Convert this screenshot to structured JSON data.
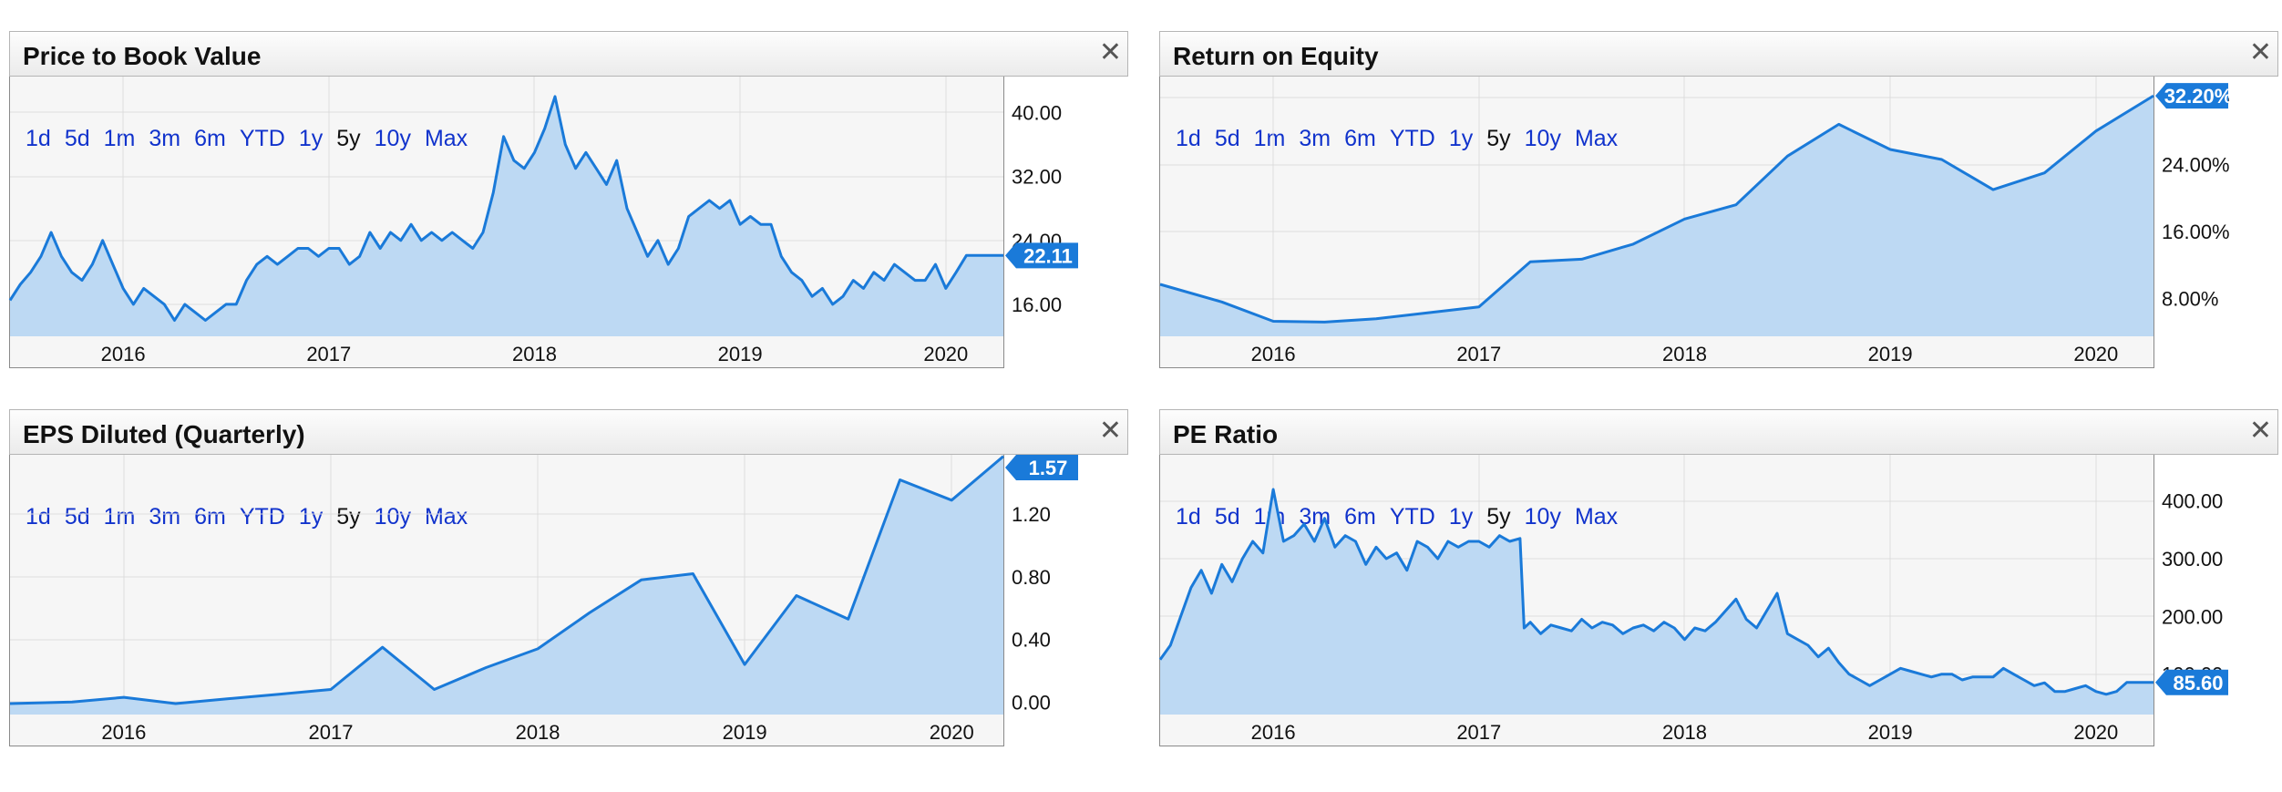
{
  "time_range_buttons": [
    "1d",
    "5d",
    "1m",
    "3m",
    "6m",
    "YTD",
    "1y",
    "5y",
    "10y",
    "Max"
  ],
  "active_range": "5y",
  "accent_color": "#1a7ad9",
  "fill_color": "#bdd9f3",
  "chart_data": [
    {
      "type": "area",
      "title": "Price to Book Value",
      "x_tick_labels": [
        "2016",
        "2017",
        "2018",
        "2019",
        "2020"
      ],
      "y_tick_labels": [
        "40.00",
        "32.00",
        "24.00",
        "16.00"
      ],
      "y_ticks": [
        40,
        32,
        24,
        16
      ],
      "xlim": [
        2015.45,
        2020.28
      ],
      "ylim": [
        12.0,
        44.5
      ],
      "current_value": 22.11,
      "current_value_label": "22.11",
      "x": [
        2015.45,
        2015.5,
        2015.55,
        2015.6,
        2015.65,
        2015.7,
        2015.75,
        2015.8,
        2015.85,
        2015.9,
        2015.95,
        2016.0,
        2016.05,
        2016.1,
        2016.15,
        2016.2,
        2016.25,
        2016.3,
        2016.35,
        2016.4,
        2016.45,
        2016.5,
        2016.55,
        2016.6,
        2016.65,
        2016.7,
        2016.75,
        2016.8,
        2016.85,
        2016.9,
        2016.95,
        2017.0,
        2017.05,
        2017.1,
        2017.15,
        2017.2,
        2017.25,
        2017.3,
        2017.35,
        2017.4,
        2017.45,
        2017.5,
        2017.55,
        2017.6,
        2017.65,
        2017.7,
        2017.75,
        2017.8,
        2017.85,
        2017.9,
        2017.95,
        2018.0,
        2018.05,
        2018.1,
        2018.15,
        2018.2,
        2018.25,
        2018.3,
        2018.35,
        2018.4,
        2018.45,
        2018.5,
        2018.55,
        2018.6,
        2018.65,
        2018.7,
        2018.75,
        2018.8,
        2018.85,
        2018.9,
        2018.95,
        2019.0,
        2019.05,
        2019.1,
        2019.15,
        2019.2,
        2019.25,
        2019.3,
        2019.35,
        2019.4,
        2019.45,
        2019.5,
        2019.55,
        2019.6,
        2019.65,
        2019.7,
        2019.75,
        2019.8,
        2019.85,
        2019.9,
        2019.95,
        2020.0,
        2020.05,
        2020.1,
        2020.15,
        2020.2,
        2020.25,
        2020.28
      ],
      "values": [
        16.5,
        18.5,
        20,
        22,
        25,
        22,
        20,
        19,
        21,
        24,
        21,
        18,
        16,
        18,
        17,
        16,
        14,
        16,
        15,
        14,
        15,
        16,
        16,
        19,
        21,
        22,
        21,
        22,
        23,
        23,
        22,
        23,
        23,
        21,
        22,
        25,
        23,
        25,
        24,
        26,
        24,
        25,
        24,
        25,
        24,
        23,
        25,
        30,
        37,
        34,
        33,
        35,
        38,
        42,
        36,
        33,
        35,
        33,
        31,
        34,
        28,
        25,
        22,
        24,
        21,
        23,
        27,
        28,
        29,
        28,
        29,
        26,
        27,
        26,
        26,
        22,
        20,
        19,
        17,
        18,
        16,
        17,
        19,
        18,
        20,
        19,
        21,
        20,
        19,
        19,
        21,
        18,
        20,
        22.11,
        22.11,
        22.11,
        22.11,
        22.11
      ]
    },
    {
      "type": "area",
      "title": "Return on Equity",
      "x_tick_labels": [
        "2016",
        "2017",
        "2018",
        "2019",
        "2020"
      ],
      "y_tick_labels": [
        "32.00%",
        "24.00%",
        "16.00%",
        "8.00%"
      ],
      "y_ticks": [
        32,
        24,
        16,
        8
      ],
      "xlim": [
        2015.45,
        2020.28
      ],
      "ylim": [
        3.5,
        34.5
      ],
      "current_value": 32.2,
      "current_value_label": "32.20%",
      "x": [
        2015.45,
        2015.75,
        2016.0,
        2016.25,
        2016.5,
        2016.75,
        2017.0,
        2017.25,
        2017.5,
        2017.75,
        2018.0,
        2018.25,
        2018.5,
        2018.75,
        2019.0,
        2019.25,
        2019.5,
        2019.75,
        2020.0,
        2020.28
      ],
      "values": [
        9.7,
        7.6,
        5.3,
        5.2,
        5.6,
        6.3,
        7.0,
        12.4,
        12.7,
        14.5,
        17.5,
        19.2,
        25.0,
        28.8,
        25.8,
        24.6,
        21.0,
        23.0,
        28.0,
        32.2
      ]
    },
    {
      "type": "area",
      "title": "EPS Diluted (Quarterly)",
      "x_tick_labels": [
        "2016",
        "2017",
        "2018",
        "2019",
        "2020"
      ],
      "y_tick_labels": [
        "1.20",
        "0.80",
        "0.40",
        "0.00"
      ],
      "y_ticks": [
        1.2,
        0.8,
        0.4,
        0.0
      ],
      "xlim": [
        2015.45,
        2020.25
      ],
      "ylim": [
        -0.08,
        1.58
      ],
      "current_value": 1.57,
      "current_value_label": "1.57",
      "x": [
        2015.45,
        2015.75,
        2016.0,
        2016.25,
        2016.5,
        2016.75,
        2017.0,
        2017.25,
        2017.5,
        2017.75,
        2018.0,
        2018.25,
        2018.5,
        2018.75,
        2019.0,
        2019.25,
        2019.5,
        2019.75,
        2020.0,
        2020.25
      ],
      "values": [
        -0.01,
        0.0,
        0.03,
        -0.01,
        0.02,
        0.05,
        0.08,
        0.35,
        0.08,
        0.22,
        0.34,
        0.57,
        0.78,
        0.82,
        0.24,
        0.68,
        0.53,
        1.42,
        1.29,
        1.57
      ]
    },
    {
      "type": "area",
      "title": "PE Ratio",
      "x_tick_labels": [
        "2016",
        "2017",
        "2018",
        "2019",
        "2020"
      ],
      "y_tick_labels": [
        "400.00",
        "300.00",
        "200.00",
        "100.00"
      ],
      "y_ticks": [
        400,
        300,
        200,
        100
      ],
      "xlim": [
        2015.45,
        2020.28
      ],
      "ylim": [
        30,
        480
      ],
      "current_value": 85.6,
      "current_value_label": "85.60",
      "x": [
        2015.45,
        2015.5,
        2015.55,
        2015.6,
        2015.65,
        2015.7,
        2015.75,
        2015.8,
        2015.85,
        2015.9,
        2015.95,
        2016.0,
        2016.05,
        2016.1,
        2016.15,
        2016.2,
        2016.25,
        2016.3,
        2016.35,
        2016.4,
        2016.45,
        2016.5,
        2016.55,
        2016.6,
        2016.65,
        2016.7,
        2016.75,
        2016.8,
        2016.85,
        2016.9,
        2016.95,
        2017.0,
        2017.05,
        2017.1,
        2017.15,
        2017.2,
        2017.22,
        2017.25,
        2017.3,
        2017.35,
        2017.4,
        2017.45,
        2017.5,
        2017.55,
        2017.6,
        2017.65,
        2017.7,
        2017.75,
        2017.8,
        2017.85,
        2017.9,
        2017.95,
        2018.0,
        2018.05,
        2018.1,
        2018.15,
        2018.2,
        2018.25,
        2018.3,
        2018.35,
        2018.4,
        2018.45,
        2018.5,
        2018.55,
        2018.6,
        2018.65,
        2018.7,
        2018.75,
        2018.8,
        2018.85,
        2018.9,
        2018.95,
        2019.0,
        2019.05,
        2019.1,
        2019.15,
        2019.2,
        2019.25,
        2019.3,
        2019.35,
        2019.4,
        2019.45,
        2019.5,
        2019.55,
        2019.6,
        2019.65,
        2019.7,
        2019.75,
        2019.8,
        2019.85,
        2019.9,
        2019.95,
        2020.0,
        2020.05,
        2020.1,
        2020.15,
        2020.2,
        2020.25,
        2020.28
      ],
      "values": [
        125,
        150,
        200,
        250,
        280,
        240,
        290,
        260,
        300,
        330,
        310,
        420,
        330,
        340,
        360,
        330,
        370,
        320,
        340,
        330,
        290,
        320,
        300,
        310,
        280,
        330,
        320,
        300,
        330,
        320,
        330,
        330,
        320,
        340,
        330,
        335,
        180,
        190,
        170,
        185,
        180,
        175,
        195,
        180,
        190,
        185,
        170,
        180,
        185,
        175,
        190,
        180,
        160,
        180,
        175,
        190,
        210,
        230,
        195,
        180,
        210,
        240,
        170,
        160,
        150,
        130,
        145,
        120,
        100,
        90,
        80,
        90,
        100,
        110,
        105,
        100,
        95,
        100,
        100,
        90,
        95,
        95,
        95,
        110,
        100,
        90,
        80,
        85,
        70,
        70,
        75,
        80,
        70,
        65,
        70,
        85.6,
        85.6,
        85.6,
        85.6
      ]
    }
  ]
}
